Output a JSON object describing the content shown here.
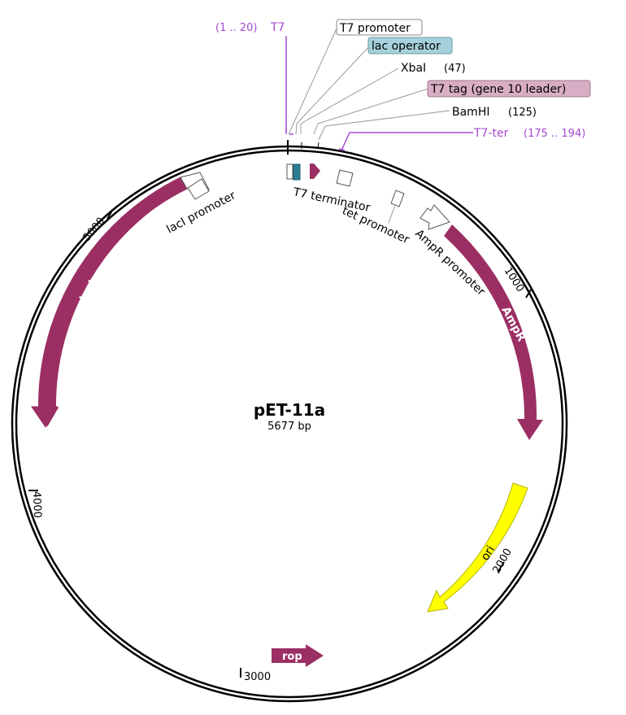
{
  "plasmid": {
    "name": "pET-11a",
    "size_label": "5677 bp"
  },
  "colors": {
    "feature": "#9b2f63",
    "ori": "#ffff00",
    "lac_operator": "#a6d1da",
    "lac_operator_box": "#2b7f95",
    "t7_tag": "#d8aec4",
    "primer": "#a64ad2"
  },
  "features": {
    "lacI": "lacI",
    "ampR": "AmpR",
    "ori": "ori",
    "rop": "rop"
  },
  "labels": {
    "t7_range": "(1 .. 20)",
    "t7_name": "T7",
    "t7_promoter": "T7 promoter",
    "lac_operator": "lac operator",
    "xbaI": "XbaI",
    "xbaI_pos": "(47)",
    "t7_tag": "T7 tag (gene 10 leader)",
    "bamHI": "BamHI",
    "bamHI_pos": "(125)",
    "t7_ter": "T7-ter",
    "t7_ter_range": "(175 .. 194)",
    "t7_terminator": "T7 terminator",
    "tet_promoter": "tet promoter",
    "ampR_promoter": "AmpR promoter",
    "lacI_promoter": "lacI promoter"
  },
  "ticks": {
    "t1000": "1000",
    "t2000": "2000",
    "t3000": "3000",
    "t4000": "4000",
    "t5000": "5000"
  }
}
